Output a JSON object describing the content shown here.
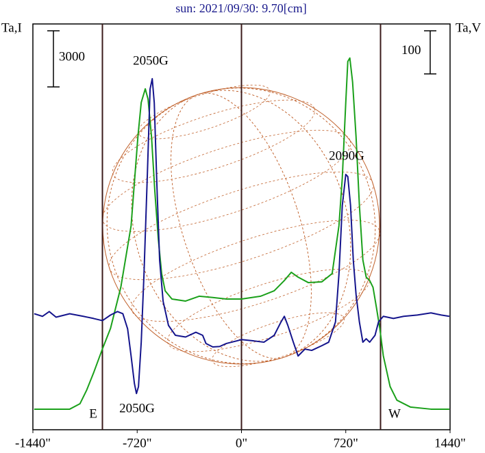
{
  "chart_data": {
    "type": "line",
    "title": "sun: 2021/09/30: 9.70[cm]",
    "y_label": "Ta,I",
    "y2_label": "Ta,V",
    "xlim": [
      -1440,
      1440
    ],
    "xticks": [
      {
        "value": -1440,
        "label": "-1440\""
      },
      {
        "value": -720,
        "label": "-720\""
      },
      {
        "value": 0,
        "label": "0\""
      },
      {
        "value": 720,
        "label": "720\""
      },
      {
        "value": 1440,
        "label": "1440\""
      }
    ],
    "ylim": [
      -1100,
      20600
    ],
    "y2lim": [
      -263,
      678
    ],
    "y_scale_bar": 3000,
    "y2_scale_bar": 100,
    "reference_lines_x": [
      -960,
      0,
      960
    ],
    "annotations": [
      "2050G",
      "2090G",
      "2050G",
      "E",
      "W"
    ],
    "series": [
      {
        "color": "#1aa01a",
        "axis": "y",
        "x": [
          -1431,
          -1186,
          -1115,
          -1068,
          -1021,
          -960,
          -904,
          -833,
          -762,
          -715,
          -692,
          -664,
          -645,
          -621,
          -598,
          -574,
          -551,
          -527,
          -480,
          -386,
          -292,
          -198,
          -104,
          0,
          132,
          226,
          296,
          344,
          391,
          461,
          555,
          626,
          673,
          696,
          720,
          734,
          748,
          767,
          791,
          814,
          838,
          861,
          885,
          908,
          932,
          955,
          979,
          1026,
          1073,
          1167,
          1308,
          1435
        ],
        "values": [
          0,
          0,
          290,
          1030,
          1940,
          3220,
          4320,
          6520,
          9810,
          14570,
          16400,
          17130,
          16580,
          14570,
          11640,
          9080,
          7250,
          6330,
          5890,
          5780,
          6040,
          5970,
          5890,
          5890,
          6040,
          6330,
          6880,
          7320,
          7060,
          6770,
          6810,
          7250,
          9810,
          12370,
          16400,
          18590,
          18780,
          17500,
          14570,
          10910,
          7980,
          7060,
          6880,
          6520,
          5420,
          4320,
          2860,
          1210,
          480,
          110,
          0,
          0
        ]
      },
      {
        "color": "#14148c",
        "axis": "y2",
        "x": [
          -1431,
          -1374,
          -1327,
          -1280,
          -1186,
          -1092,
          -1021,
          -960,
          -904,
          -856,
          -819,
          -786,
          -762,
          -739,
          -725,
          -711,
          -692,
          -673,
          -649,
          -631,
          -616,
          -602,
          -584,
          -565,
          -541,
          -504,
          -456,
          -386,
          -315,
          -268,
          -245,
          -198,
          -151,
          -104,
          -33,
          0,
          85,
          155,
          226,
          273,
          296,
          320,
          358,
          391,
          438,
          485,
          555,
          602,
          649,
          673,
          696,
          720,
          734,
          753,
          772,
          791,
          814,
          838,
          861,
          885,
          922,
          946,
          979,
          1049,
          1120,
          1214,
          1308,
          1379,
          1435
        ],
        "values": [
          6,
          0,
          11,
          -2,
          6,
          0,
          -5,
          -10,
          3,
          11,
          6,
          -29,
          -92,
          -156,
          -179,
          -163,
          -60,
          98,
          336,
          527,
          551,
          495,
          305,
          130,
          35,
          -21,
          -44,
          -48,
          -37,
          -44,
          -63,
          -71,
          -70,
          -63,
          -57,
          -54,
          -57,
          -60,
          -44,
          -13,
          0,
          -21,
          -60,
          -92,
          -76,
          -79,
          -68,
          -60,
          -13,
          98,
          257,
          329,
          324,
          257,
          130,
          51,
          -13,
          -60,
          -52,
          -60,
          -44,
          -13,
          0,
          -5,
          0,
          3,
          8,
          3,
          0
        ]
      }
    ]
  }
}
